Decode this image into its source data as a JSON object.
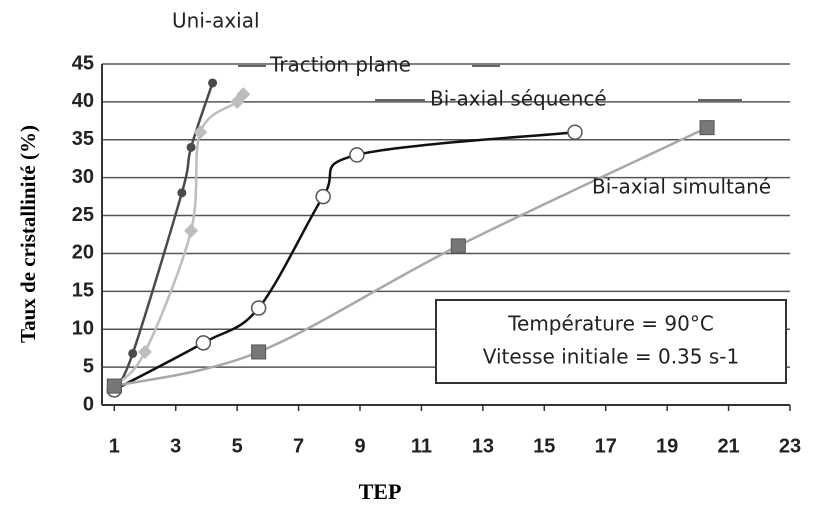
{
  "chart_data": {
    "type": "line",
    "x_label": "TEP",
    "y_label": "Taux de cristallinité (%)",
    "xlim": [
      0.6,
      23
    ],
    "ylim": [
      0,
      45
    ],
    "xticks": [
      1,
      3,
      5,
      7,
      9,
      11,
      13,
      15,
      17,
      19,
      21,
      23
    ],
    "yticks": [
      0,
      5,
      10,
      15,
      20,
      25,
      30,
      35,
      40,
      45
    ],
    "grid": true,
    "series": [
      {
        "name": "Uni-axial",
        "color": "#4a4a4a",
        "marker": "dot",
        "x": [
          1,
          1.6,
          3.2,
          3.5,
          4.2
        ],
        "values": [
          2,
          6.8,
          28,
          34,
          42.5
        ]
      },
      {
        "name": "Traction plane",
        "color": "#bdbdbd",
        "marker": "diamond",
        "x": [
          1,
          2,
          3.5,
          3.8,
          5,
          5.2
        ],
        "values": [
          2.5,
          7,
          23,
          36,
          40,
          41
        ]
      },
      {
        "name": "Bi-axial séquencé",
        "color": "#111111",
        "marker": "open-circle",
        "x": [
          1,
          3.9,
          5.7,
          7.8,
          8.9,
          16
        ],
        "values": [
          2,
          8.2,
          12.8,
          27.5,
          33,
          36
        ]
      },
      {
        "name": "Bi-axial simultané",
        "color": "#a8a8a8",
        "marker": "square",
        "x": [
          1,
          5.7,
          12.2,
          20.3
        ],
        "values": [
          2.5,
          7,
          21,
          36.6
        ]
      }
    ],
    "annotations": [
      "Température = 90°C",
      "Vitesse initiale = 0.35 s-1"
    ]
  }
}
